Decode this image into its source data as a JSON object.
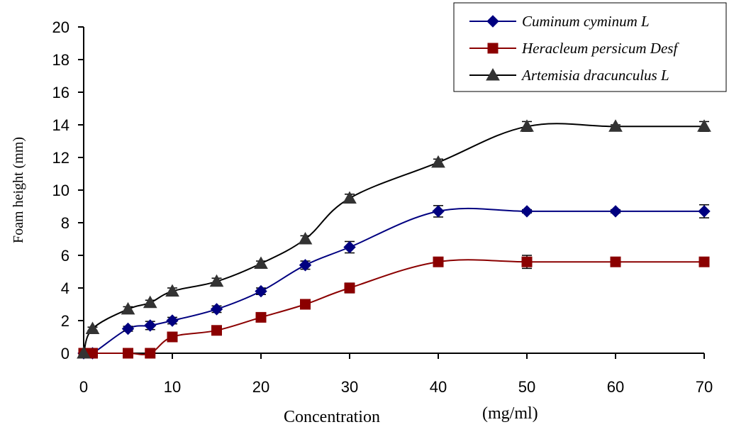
{
  "chart_data": {
    "type": "line",
    "title": "",
    "xlabel": "Concentration",
    "xunit": "(mg/ml)",
    "ylabel": "Foam height (mm)",
    "xlim": [
      0,
      70
    ],
    "ylim": [
      0,
      20
    ],
    "x_ticks": [
      0,
      10,
      20,
      30,
      40,
      50,
      60,
      70
    ],
    "y_ticks": [
      0,
      2,
      4,
      6,
      8,
      10,
      12,
      14,
      16,
      18,
      20
    ],
    "legend_position": "top-right",
    "grid": false,
    "x": [
      0,
      1,
      5,
      7.5,
      10,
      15,
      20,
      25,
      30,
      40,
      50,
      60,
      70
    ],
    "series": [
      {
        "name": "Cuminum cyminum L",
        "marker": "diamond",
        "color": "#000080",
        "values": [
          0,
          0,
          1.5,
          1.7,
          2.0,
          2.7,
          3.8,
          5.4,
          6.5,
          8.7,
          8.7,
          8.7,
          8.7
        ],
        "errors": [
          0,
          0,
          0.15,
          0.25,
          0.2,
          0.2,
          0.2,
          0.25,
          0.35,
          0.35,
          0.1,
          0.1,
          0.4
        ]
      },
      {
        "name": "Heracleum persicum Desf",
        "marker": "square",
        "color": "#8B0000",
        "values": [
          0,
          0,
          0,
          0,
          1.0,
          1.4,
          2.2,
          3.0,
          4.0,
          5.6,
          5.6,
          5.6,
          5.6
        ],
        "errors": [
          0,
          0,
          0,
          0,
          0.15,
          0.1,
          0.15,
          0.15,
          0.3,
          0.2,
          0.4,
          0.15,
          0.15
        ]
      },
      {
        "name": "Artemisia dracunculus L",
        "marker": "triangle",
        "color": "#333333",
        "values": [
          0,
          1.5,
          2.7,
          3.1,
          3.8,
          4.4,
          5.5,
          7.0,
          9.5,
          11.7,
          13.9,
          13.9,
          13.9
        ],
        "errors": [
          0,
          0.1,
          0.15,
          0.15,
          0.2,
          0.2,
          0.15,
          0.2,
          0.25,
          0.2,
          0.3,
          0.1,
          0.3
        ]
      }
    ]
  }
}
